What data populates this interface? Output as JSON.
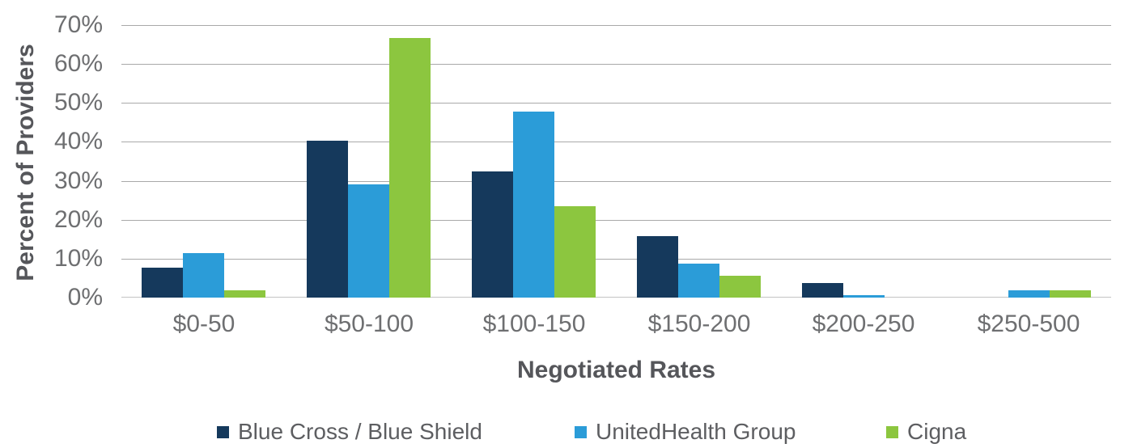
{
  "chart_data": {
    "type": "bar",
    "title": "",
    "xlabel": "Negotiated Rates",
    "ylabel": "Percent of Providers",
    "categories": [
      "$0-50",
      "$50-100",
      "$100-150",
      "$150-200",
      "$200-250",
      "$250-500"
    ],
    "series": [
      {
        "name": "Blue Cross / Blue Shield",
        "color": "#15395c",
        "values": [
          7.6,
          40.4,
          32.3,
          15.7,
          3.8,
          0
        ]
      },
      {
        "name": "UnitedHealth Group",
        "color": "#2b9cd8",
        "values": [
          11.5,
          29.0,
          47.8,
          8.8,
          0.6,
          1.8
        ]
      },
      {
        "name": "Cigna",
        "color": "#8cc63f",
        "values": [
          1.8,
          66.6,
          23.5,
          5.7,
          0,
          1.9
        ]
      }
    ],
    "ylim": [
      0,
      70
    ],
    "ytick_step": 10,
    "ytick_suffix": "%",
    "grid": true,
    "legend_position": "bottom"
  },
  "style": {
    "grid_color": "#a9a9a9",
    "baseline_color": "#c3c3c3",
    "tick_label_color": "#6e6f71",
    "axis_title_color": "#55565a",
    "legend_text_color": "#5d5e61"
  }
}
